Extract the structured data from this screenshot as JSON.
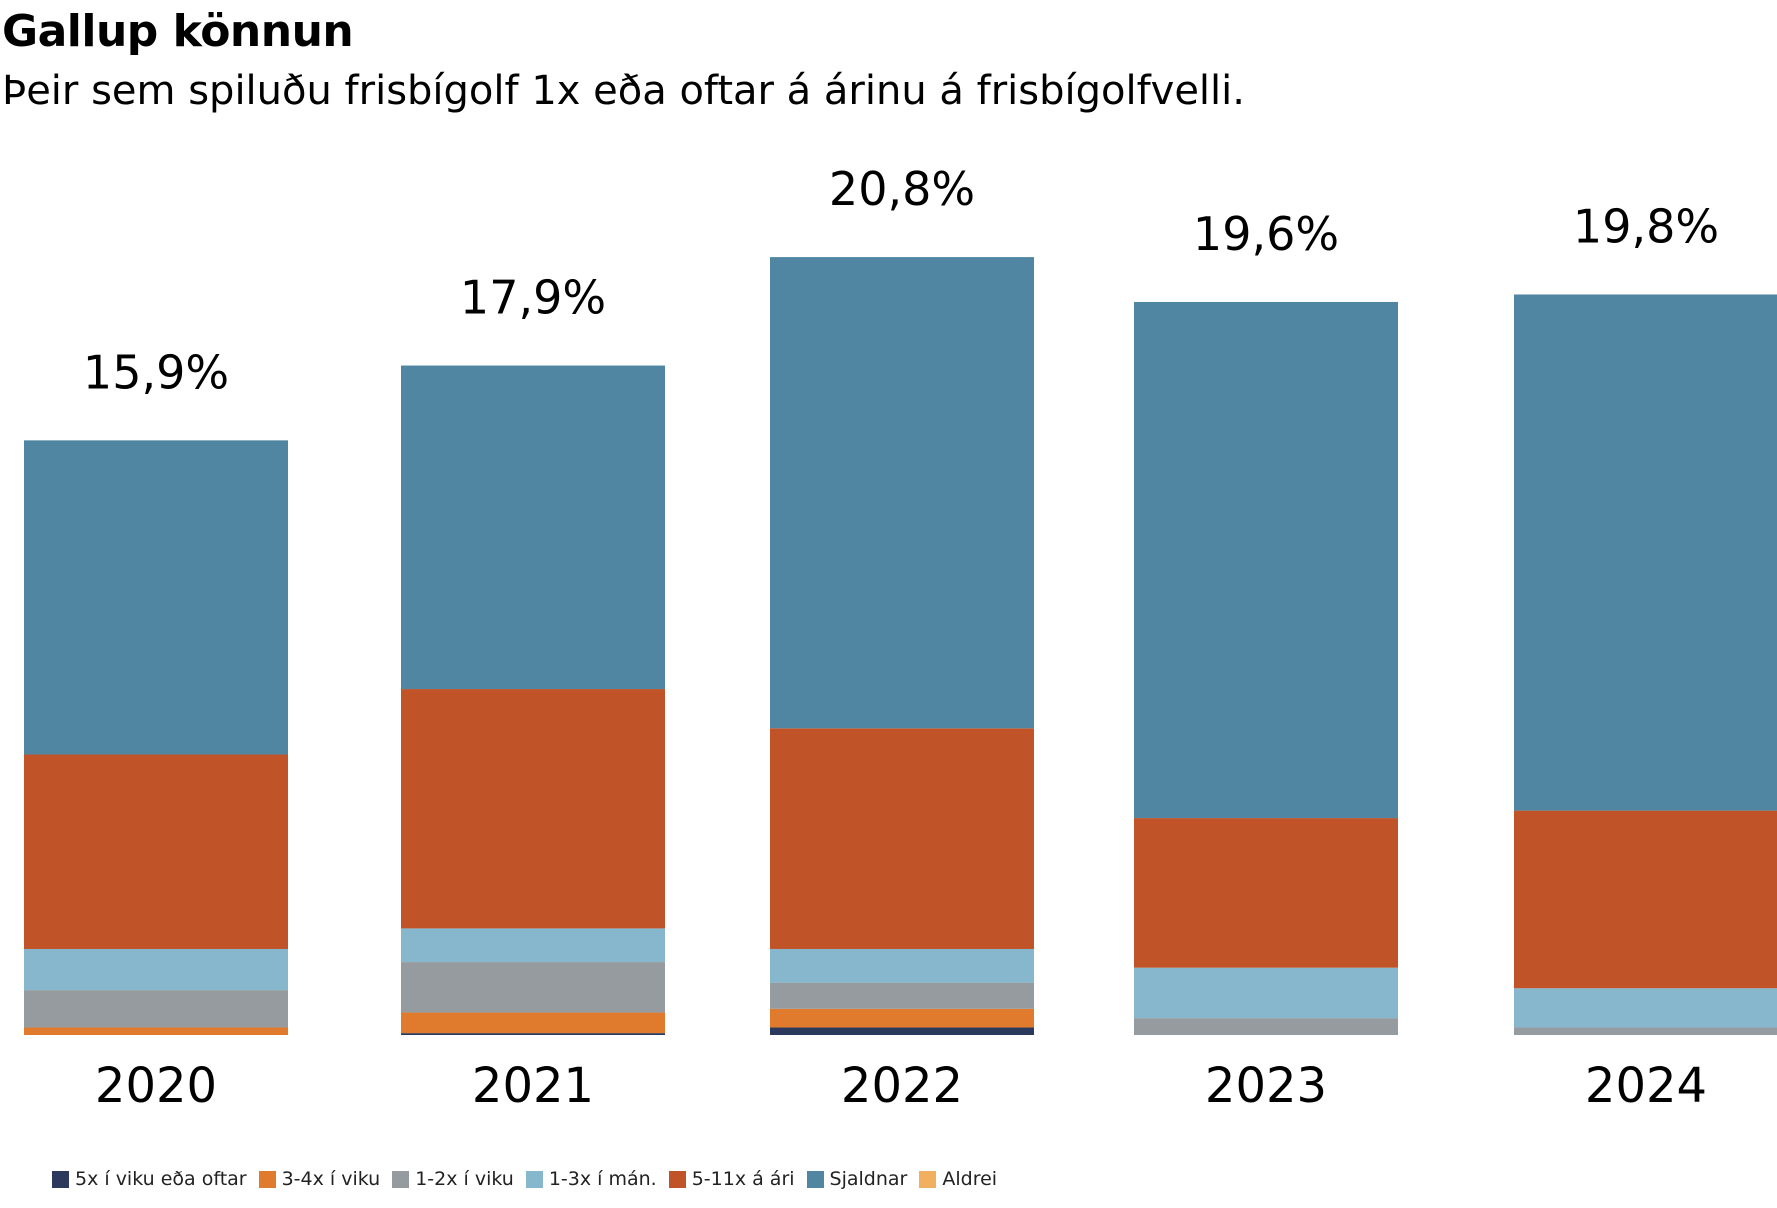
{
  "chart_data": {
    "type": "bar",
    "stacked": true,
    "title": "Gallup könnun",
    "subtitle": "Þeir sem spiluðu frisbígolf 1x eða oftar á árinu á frisbígolfvelli.",
    "categories": [
      "2020",
      "2021",
      "2022",
      "2023",
      "2024"
    ],
    "totals": [
      "15,9%",
      "17,9%",
      "20,8%",
      "19,6%",
      "19,8%"
    ],
    "total_values": [
      15.9,
      17.9,
      20.8,
      19.6,
      19.8
    ],
    "series": [
      {
        "name": "5x í viku eða oftar",
        "color": "#2b3a5c",
        "values": [
          0.0,
          0.05,
          0.2,
          0.0,
          0.0
        ]
      },
      {
        "name": "3-4x í viku",
        "color": "#e07b2e",
        "values": [
          0.2,
          0.55,
          0.5,
          0.0,
          0.0
        ]
      },
      {
        "name": "1-2x í viku",
        "color": "#959b9e",
        "values": [
          1.0,
          1.35,
          0.7,
          0.45,
          0.2
        ]
      },
      {
        "name": "1-3x í mán.",
        "color": "#87b7cd",
        "values": [
          1.1,
          0.9,
          0.9,
          1.35,
          1.05
        ]
      },
      {
        "name": "5-11x á ári",
        "color": "#c05428",
        "values": [
          5.2,
          6.4,
          5.9,
          4.0,
          4.75
        ]
      },
      {
        "name": "Sjaldnar",
        "color": "#5186a3",
        "values": [
          8.4,
          8.65,
          12.6,
          13.8,
          13.8
        ]
      },
      {
        "name": "Aldrei",
        "color": "#f0b060",
        "values": [
          0,
          0,
          0,
          0,
          0
        ]
      }
    ],
    "ylim": [
      0,
      24
    ],
    "grid": false,
    "legend_position": "bottom-left"
  }
}
